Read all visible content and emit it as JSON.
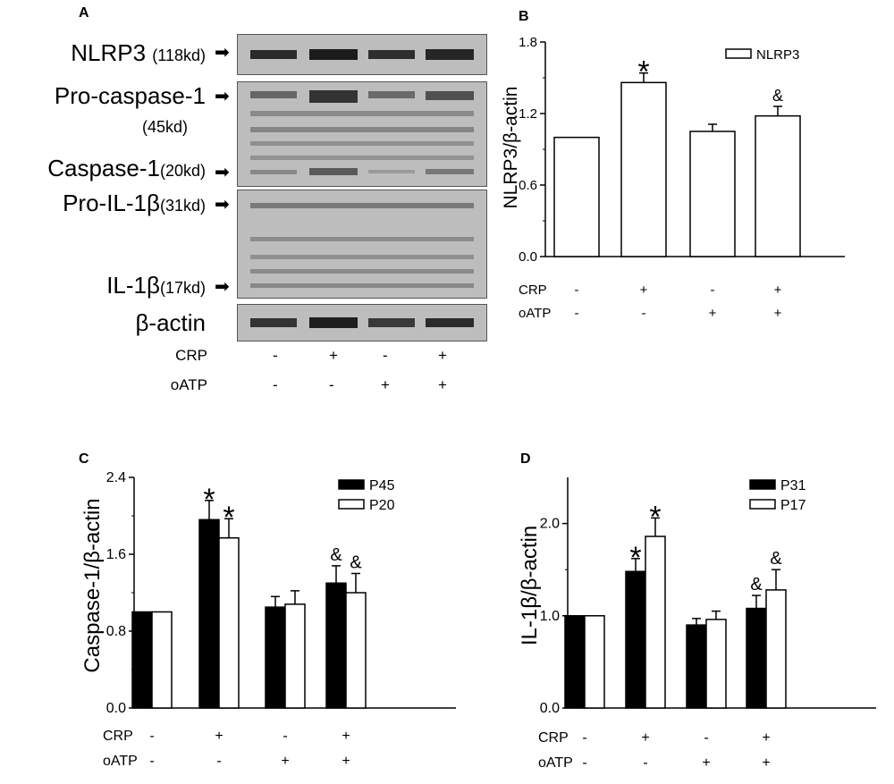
{
  "panels": {
    "a": "A",
    "b": "B",
    "c": "C",
    "d": "D"
  },
  "western": {
    "bands": [
      {
        "name": "NLRP3",
        "mw": "(118kd)"
      },
      {
        "name": "Pro-caspase-1",
        "mw": "(45kd)"
      },
      {
        "name": "Caspase-1",
        "mw": "(20kd)"
      },
      {
        "name": "Pro-IL-1β",
        "mw": "(31kd)"
      },
      {
        "name": "IL-1β",
        "mw": "(17kd)"
      },
      {
        "name": "β-actin",
        "mw": ""
      }
    ],
    "conditions": {
      "crp_label": "CRP",
      "oatp_label": "oATP",
      "crp": [
        "-",
        "+",
        "-",
        "+"
      ],
      "oatp": [
        "-",
        "-",
        "+",
        "+"
      ]
    }
  },
  "chart_data": [
    {
      "panel": "B",
      "type": "bar",
      "ylabel": "NLRP3/β-actin",
      "ylim": [
        0,
        1.8
      ],
      "yticks": [
        "0.0",
        "0.6",
        "1.2",
        "1.8"
      ],
      "categories": [
        "1",
        "2",
        "3",
        "4"
      ],
      "series": [
        {
          "name": "NLRP3",
          "fill": "#ffffff",
          "values": [
            1.0,
            1.46,
            1.05,
            1.18
          ],
          "errors": [
            0,
            0.08,
            0.06,
            0.08
          ],
          "marks": [
            "",
            "*",
            "",
            "&"
          ]
        }
      ],
      "legend": "top-right",
      "rows": [
        {
          "label": "CRP",
          "values": [
            "-",
            "+",
            "-",
            "+"
          ]
        },
        {
          "label": "oATP",
          "values": [
            "-",
            "-",
            "+",
            "+"
          ]
        }
      ]
    },
    {
      "panel": "C",
      "type": "bar",
      "ylabel": "Caspase-1/β-actin",
      "ylim": [
        0,
        2.4
      ],
      "yticks": [
        "0.0",
        "0.8",
        "1.6",
        "2.4"
      ],
      "categories": [
        "1",
        "2",
        "3",
        "4"
      ],
      "series": [
        {
          "name": "P45",
          "fill": "#000000",
          "values": [
            1.0,
            1.96,
            1.05,
            1.3
          ],
          "errors": [
            0,
            0.2,
            0.11,
            0.18
          ],
          "marks": [
            "",
            "*",
            "",
            "&"
          ]
        },
        {
          "name": "P20",
          "fill": "#ffffff",
          "values": [
            1.0,
            1.77,
            1.08,
            1.2
          ],
          "errors": [
            0,
            0.2,
            0.14,
            0.2
          ],
          "marks": [
            "",
            "*",
            "",
            "&"
          ]
        }
      ],
      "legend": "top-right",
      "rows": [
        {
          "label": "CRP",
          "values": [
            "-",
            "+",
            "-",
            "+"
          ]
        },
        {
          "label": "oATP",
          "values": [
            "-",
            "-",
            "+",
            "+"
          ]
        }
      ]
    },
    {
      "panel": "D",
      "type": "bar",
      "ylabel": "IL-1β/β-actin",
      "ylim": [
        0,
        2.5
      ],
      "yticks": [
        "0.0",
        "1.0",
        "2.0"
      ],
      "categories": [
        "1",
        "2",
        "3",
        "4"
      ],
      "series": [
        {
          "name": "P31",
          "fill": "#000000",
          "values": [
            1.0,
            1.48,
            0.9,
            1.08
          ],
          "errors": [
            0,
            0.14,
            0.07,
            0.14
          ],
          "marks": [
            "",
            "*",
            "",
            "&"
          ]
        },
        {
          "name": "P17",
          "fill": "#ffffff",
          "values": [
            1.0,
            1.86,
            0.96,
            1.28
          ],
          "errors": [
            0,
            0.2,
            0.09,
            0.22
          ],
          "marks": [
            "",
            "*",
            "",
            "&"
          ]
        }
      ],
      "legend": "top-right",
      "rows": [
        {
          "label": "CRP",
          "values": [
            "-",
            "+",
            "-",
            "+"
          ]
        },
        {
          "label": "oATP",
          "values": [
            "-",
            "-",
            "+",
            "+"
          ]
        }
      ]
    }
  ]
}
